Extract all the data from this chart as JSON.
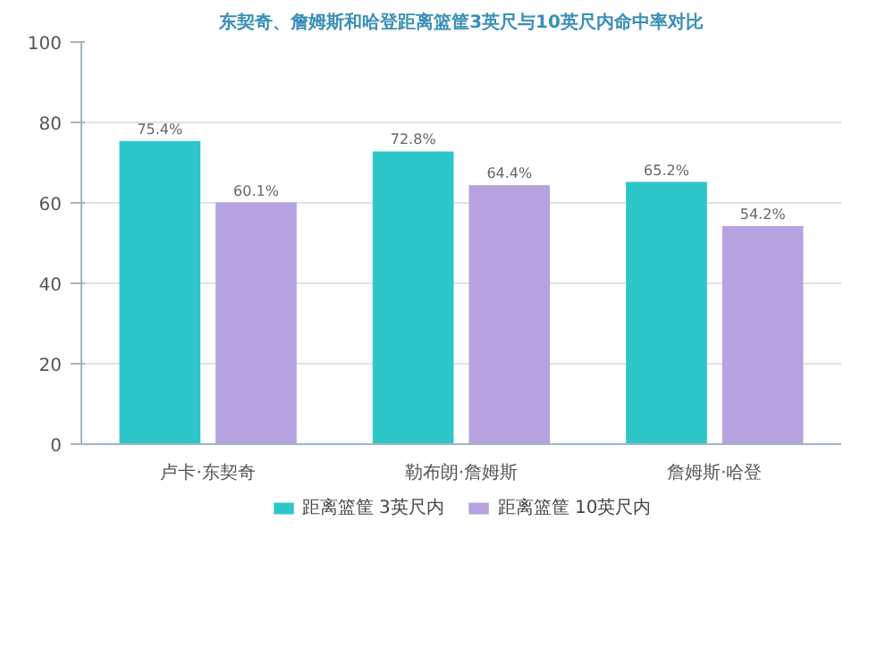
{
  "chart_data": {
    "type": "bar",
    "title": "东契奇、詹姆斯和哈登距离篮筐3英尺与10英尺内命中率对比",
    "categories": [
      "卢卡·东契奇",
      "勒布朗·詹姆斯",
      "詹姆斯·哈登"
    ],
    "series": [
      {
        "name": "距离篮筐 3英尺内",
        "color": "#2ec7c9",
        "values": [
          75.4,
          72.8,
          65.2
        ],
        "value_labels": [
          "75.4%",
          "72.8%",
          "65.2%"
        ]
      },
      {
        "name": "距离篮筐 10英尺内",
        "color": "#b6a2de",
        "values": [
          60.1,
          64.4,
          54.2
        ],
        "value_labels": [
          "60.1%",
          "64.4%",
          "54.2%"
        ]
      }
    ],
    "ylim": [
      0,
      100
    ],
    "yticks": [
      0,
      20,
      40,
      60,
      80,
      100
    ],
    "grid": "y",
    "legend": "bottom"
  }
}
